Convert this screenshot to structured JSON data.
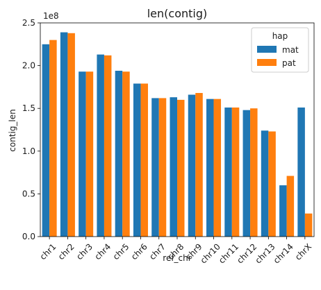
{
  "chart_data": {
    "type": "bar",
    "title": "len(contig)",
    "xlabel": "ref_chr",
    "ylabel": "contig_len",
    "offset_label": "1e8",
    "categories": [
      "chr1",
      "chr2",
      "chr3",
      "chr4",
      "chr5",
      "chr6",
      "chr7",
      "chr8",
      "chr9",
      "chr10",
      "chr11",
      "chr12",
      "chr13",
      "chr14",
      "chrX"
    ],
    "y_ticks": [
      "0.0",
      "0.5",
      "1.0",
      "1.5",
      "2.0",
      "2.5"
    ],
    "y_tick_values": [
      0.0,
      0.5,
      1.0,
      1.5,
      2.0,
      2.5
    ],
    "ylim": [
      0,
      2.5
    ],
    "grid": false,
    "legend": {
      "title": "hap",
      "placement": "top-right"
    },
    "series": [
      {
        "name": "mat",
        "color": "#1f77b4",
        "values": [
          2.25,
          2.39,
          1.93,
          2.13,
          1.94,
          1.79,
          1.62,
          1.63,
          1.66,
          1.61,
          1.51,
          1.48,
          1.24,
          0.6,
          1.51
        ]
      },
      {
        "name": "pat",
        "color": "#ff7f0e",
        "values": [
          2.3,
          2.38,
          1.93,
          2.12,
          1.93,
          1.79,
          1.62,
          1.6,
          1.68,
          1.61,
          1.51,
          1.5,
          1.23,
          0.71,
          0.27
        ]
      }
    ]
  }
}
